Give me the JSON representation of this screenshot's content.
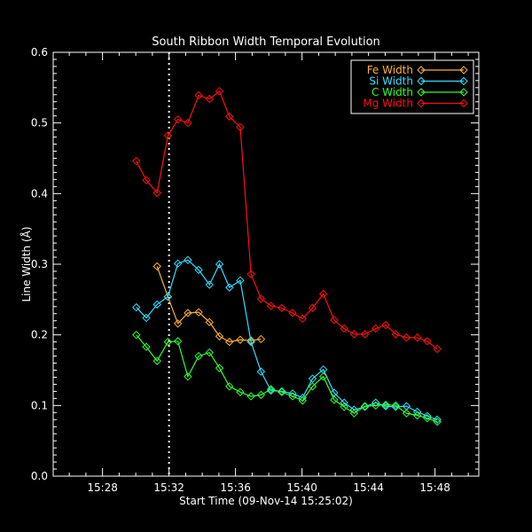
{
  "chart": {
    "title": "South Ribbon Width Temporal Evolution",
    "xlabel": "Start Time (09-Nov-14 15:25:02)",
    "ylabel": "Line Width (Å)",
    "legend": [
      {
        "label": "Fe Width",
        "color": "#ffb030"
      },
      {
        "label": "Si Width",
        "color": "#30e0ff"
      },
      {
        "label": "C Width",
        "color": "#30ff30"
      },
      {
        "label": "Mg Width",
        "color": "#ff1010"
      }
    ]
  },
  "chart_data": {
    "type": "line",
    "title": "South Ribbon Width Temporal Evolution",
    "xlabel": "Start Time (09-Nov-14 15:25:02)",
    "ylabel": "Line Width (Å)",
    "ylim": [
      0.0,
      0.6
    ],
    "yticks": [
      "0.0",
      "0.1",
      "0.2",
      "0.3",
      "0.4",
      "0.5",
      "0.6"
    ],
    "xticks": [
      "15:28",
      "15:32",
      "15:36",
      "15:40",
      "15:44",
      "15:48"
    ],
    "xlim_minutes_after_start": [
      0,
      25.6
    ],
    "vertical_marker": "15:32 (dotted line)",
    "legend_position": "upper right",
    "x_minutes_after_start": [
      5.0,
      5.6,
      6.25,
      6.9,
      7.5,
      8.1,
      8.75,
      9.4,
      10.0,
      10.6,
      11.25,
      11.9,
      12.5,
      13.1,
      13.75,
      14.4,
      15.0,
      15.6,
      16.25,
      16.9,
      17.5,
      18.1,
      18.75,
      19.4,
      20.0,
      20.6,
      21.25,
      21.9,
      22.5,
      23.1
    ],
    "series": [
      {
        "name": "Mg Width",
        "color": "#ff1010",
        "values": [
          0.446,
          0.419,
          0.401,
          0.482,
          0.505,
          0.5,
          0.539,
          0.534,
          0.545,
          0.509,
          0.494,
          0.286,
          0.251,
          0.241,
          0.238,
          0.231,
          0.223,
          0.238,
          0.258,
          0.221,
          0.209,
          0.201,
          0.201,
          0.209,
          0.214,
          0.201,
          0.196,
          0.196,
          0.191,
          0.18
        ]
      },
      {
        "name": "Si Width",
        "color": "#30e0ff",
        "values": [
          0.239,
          0.224,
          0.243,
          0.254,
          0.301,
          0.306,
          0.292,
          0.271,
          0.3,
          0.267,
          0.277,
          0.19,
          0.148,
          0.121,
          0.12,
          0.117,
          0.111,
          0.138,
          0.151,
          0.118,
          0.104,
          0.094,
          0.098,
          0.104,
          0.099,
          0.098,
          0.099,
          0.091,
          0.085,
          0.08
        ]
      },
      {
        "name": "Fe Width",
        "color": "#ffb030",
        "x_minutes_after_start": [
          6.25,
          6.9,
          7.5,
          8.1,
          8.75,
          9.4,
          10.0,
          10.6,
          11.25,
          11.9,
          12.5
        ],
        "values": [
          0.297,
          0.254,
          0.216,
          0.231,
          0.232,
          0.218,
          0.198,
          0.19,
          0.193,
          0.192,
          0.194
        ]
      },
      {
        "name": "C Width",
        "color": "#30ff30",
        "values": [
          0.2,
          0.183,
          0.163,
          0.19,
          0.191,
          0.141,
          0.17,
          0.175,
          0.153,
          0.127,
          0.119,
          0.113,
          0.115,
          0.123,
          0.119,
          0.113,
          0.107,
          0.127,
          0.141,
          0.108,
          0.098,
          0.089,
          0.099,
          0.1,
          0.101,
          0.1,
          0.089,
          0.086,
          0.082,
          0.077
        ]
      }
    ]
  }
}
